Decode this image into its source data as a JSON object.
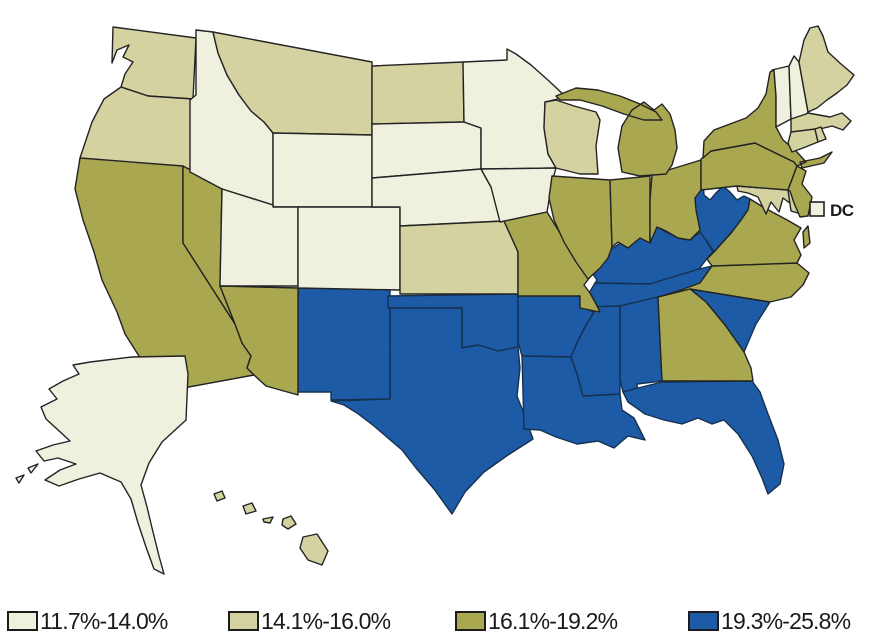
{
  "figure": {
    "type": "choropleth-map",
    "region": "United States"
  },
  "legend": {
    "items": [
      {
        "label": "11.7%-14.0%",
        "color": "#eff0de",
        "category": 1
      },
      {
        "label": "14.1%-16.0%",
        "color": "#d5d2a2",
        "category": 2
      },
      {
        "label": "16.1%-19.2%",
        "color": "#a9a750",
        "category": 3
      },
      {
        "label": "19.3%-25.8%",
        "color": "#1d5ba6",
        "category": 4
      }
    ]
  },
  "dc": {
    "label": "DC",
    "category": 1
  },
  "map": {
    "background": "#ffffff",
    "stroke_default": "#232323",
    "stroke_blue": "#16304f",
    "states": [
      {
        "id": "WA",
        "name": "Washington",
        "category": 2
      },
      {
        "id": "OR",
        "name": "Oregon",
        "category": 2
      },
      {
        "id": "CA",
        "name": "California",
        "category": 3
      },
      {
        "id": "NV",
        "name": "Nevada",
        "category": 3
      },
      {
        "id": "ID",
        "name": "Idaho",
        "category": 1
      },
      {
        "id": "MT",
        "name": "Montana",
        "category": 2
      },
      {
        "id": "WY",
        "name": "Wyoming",
        "category": 1
      },
      {
        "id": "UT",
        "name": "Utah",
        "category": 1
      },
      {
        "id": "CO",
        "name": "Colorado",
        "category": 1
      },
      {
        "id": "AZ",
        "name": "Arizona",
        "category": 3
      },
      {
        "id": "NM",
        "name": "New Mexico",
        "category": 4
      },
      {
        "id": "ND",
        "name": "North Dakota",
        "category": 2
      },
      {
        "id": "SD",
        "name": "South Dakota",
        "category": 1
      },
      {
        "id": "NE",
        "name": "Nebraska",
        "category": 1
      },
      {
        "id": "KS",
        "name": "Kansas",
        "category": 2
      },
      {
        "id": "OK",
        "name": "Oklahoma",
        "category": 4
      },
      {
        "id": "TX",
        "name": "Texas",
        "category": 4
      },
      {
        "id": "MN",
        "name": "Minnesota",
        "category": 1
      },
      {
        "id": "IA",
        "name": "Iowa",
        "category": 1
      },
      {
        "id": "MO",
        "name": "Missouri",
        "category": 3
      },
      {
        "id": "WI",
        "name": "Wisconsin",
        "category": 2
      },
      {
        "id": "IL",
        "name": "Illinois",
        "category": 3
      },
      {
        "id": "IN",
        "name": "Indiana",
        "category": 3
      },
      {
        "id": "OH",
        "name": "Ohio",
        "category": 3
      },
      {
        "id": "MI",
        "name": "Michigan",
        "category": 3
      },
      {
        "id": "KY",
        "name": "Kentucky",
        "category": 4
      },
      {
        "id": "TN",
        "name": "Tennessee",
        "category": 4
      },
      {
        "id": "AR",
        "name": "Arkansas",
        "category": 4
      },
      {
        "id": "LA",
        "name": "Louisiana",
        "category": 4
      },
      {
        "id": "MS",
        "name": "Mississippi",
        "category": 4
      },
      {
        "id": "AL",
        "name": "Alabama",
        "category": 4
      },
      {
        "id": "GA",
        "name": "Georgia",
        "category": 3
      },
      {
        "id": "FL",
        "name": "Florida",
        "category": 4
      },
      {
        "id": "SC",
        "name": "South Carolina",
        "category": 4
      },
      {
        "id": "NC",
        "name": "North Carolina",
        "category": 3
      },
      {
        "id": "VA",
        "name": "Virginia",
        "category": 3
      },
      {
        "id": "WV",
        "name": "West Virginia",
        "category": 4
      },
      {
        "id": "MD",
        "name": "Maryland",
        "category": 2
      },
      {
        "id": "DE",
        "name": "Delaware",
        "category": 2
      },
      {
        "id": "PA",
        "name": "Pennsylvania",
        "category": 3
      },
      {
        "id": "NJ",
        "name": "New Jersey",
        "category": 3
      },
      {
        "id": "NY",
        "name": "New York",
        "category": 3
      },
      {
        "id": "VT",
        "name": "Vermont",
        "category": 1
      },
      {
        "id": "NH",
        "name": "New Hampshire",
        "category": 1
      },
      {
        "id": "ME",
        "name": "Maine",
        "category": 2
      },
      {
        "id": "MA",
        "name": "Massachusetts",
        "category": 2
      },
      {
        "id": "CT",
        "name": "Connecticut",
        "category": 2
      },
      {
        "id": "RI",
        "name": "Rhode Island",
        "category": 2
      },
      {
        "id": "AK",
        "name": "Alaska",
        "category": 1
      },
      {
        "id": "HI",
        "name": "Hawaii",
        "category": 2
      }
    ]
  }
}
